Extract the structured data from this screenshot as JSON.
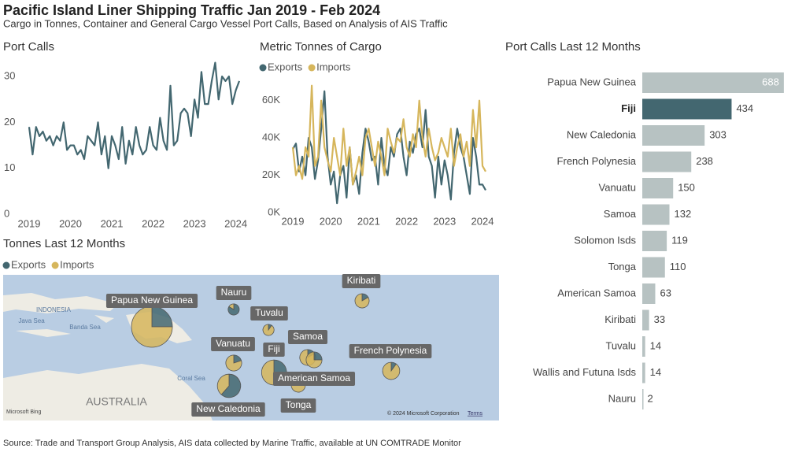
{
  "title": "Pacific Island Liner Shipping Traffic Jan 2019 - Feb 2024",
  "subtitle": "Cargo in Tonnes, Container and General Cargo Vessel Port Calls, Based on Analysis of AIS Traffic",
  "source": "Source: Trade and Transport Group Analysis, AIS data collected by Marine Traffic, available at UN COMTRADE Monitor",
  "chart_data": [
    {
      "type": "line",
      "title": "Port Calls",
      "x": [
        "2019-01",
        "2019-02",
        "2019-03",
        "2019-04",
        "2019-05",
        "2019-06",
        "2019-07",
        "2019-08",
        "2019-09",
        "2019-10",
        "2019-11",
        "2019-12",
        "2020-01",
        "2020-02",
        "2020-03",
        "2020-04",
        "2020-05",
        "2020-06",
        "2020-07",
        "2020-08",
        "2020-09",
        "2020-10",
        "2020-11",
        "2020-12",
        "2021-01",
        "2021-02",
        "2021-03",
        "2021-04",
        "2021-05",
        "2021-06",
        "2021-07",
        "2021-08",
        "2021-09",
        "2021-10",
        "2021-11",
        "2021-12",
        "2022-01",
        "2022-02",
        "2022-03",
        "2022-04",
        "2022-05",
        "2022-06",
        "2022-07",
        "2022-08",
        "2022-09",
        "2022-10",
        "2022-11",
        "2022-12",
        "2023-01",
        "2023-02",
        "2023-03",
        "2023-04",
        "2023-05",
        "2023-06",
        "2023-07",
        "2023-08",
        "2023-09",
        "2023-10",
        "2023-11",
        "2023-12",
        "2024-01",
        "2024-02"
      ],
      "series": [
        {
          "name": "Port Calls",
          "color": "#436770",
          "values": [
            19,
            13,
            19,
            17,
            18,
            16,
            17,
            15,
            17,
            16,
            20,
            14,
            15,
            15,
            13,
            14,
            12,
            17,
            16,
            15,
            20,
            13,
            17,
            10,
            17,
            15,
            12,
            19,
            11,
            16,
            13,
            19,
            15,
            13,
            14,
            19,
            15,
            14,
            21,
            16,
            14,
            28,
            15,
            16,
            22,
            23,
            22,
            17,
            25,
            21,
            31,
            24,
            24,
            29,
            33,
            25,
            30,
            29,
            30,
            24,
            27,
            29
          ]
        }
      ],
      "ylim": [
        0,
        34
      ],
      "yticks": [
        0,
        10,
        20,
        30
      ],
      "xticks": [
        {
          "value": "2019-01",
          "label": "2019"
        },
        {
          "value": "2020-01",
          "label": "2020"
        },
        {
          "value": "2021-01",
          "label": "2021"
        },
        {
          "value": "2022-01",
          "label": "2022"
        },
        {
          "value": "2023-01",
          "label": "2023"
        },
        {
          "value": "2024-01",
          "label": "2024"
        }
      ]
    },
    {
      "type": "line",
      "title": "Metric Tonnes of Cargo",
      "legend": true,
      "x": [
        "2019-01",
        "2019-02",
        "2019-03",
        "2019-04",
        "2019-05",
        "2019-06",
        "2019-07",
        "2019-08",
        "2019-09",
        "2019-10",
        "2019-11",
        "2019-12",
        "2020-01",
        "2020-02",
        "2020-03",
        "2020-04",
        "2020-05",
        "2020-06",
        "2020-07",
        "2020-08",
        "2020-09",
        "2020-10",
        "2020-11",
        "2020-12",
        "2021-01",
        "2021-02",
        "2021-03",
        "2021-04",
        "2021-05",
        "2021-06",
        "2021-07",
        "2021-08",
        "2021-09",
        "2021-10",
        "2021-11",
        "2021-12",
        "2022-01",
        "2022-02",
        "2022-03",
        "2022-04",
        "2022-05",
        "2022-06",
        "2022-07",
        "2022-08",
        "2022-09",
        "2022-10",
        "2022-11",
        "2022-12",
        "2023-01",
        "2023-02",
        "2023-03",
        "2023-04",
        "2023-05",
        "2023-06",
        "2023-07",
        "2023-08",
        "2023-09",
        "2023-10",
        "2023-11",
        "2023-12",
        "2024-01",
        "2024-02"
      ],
      "series": [
        {
          "name": "Exports",
          "color": "#436770",
          "values": [
            34000,
            37000,
            22000,
            30000,
            20000,
            40000,
            35000,
            18000,
            28000,
            45000,
            65000,
            30000,
            15000,
            22000,
            5000,
            20000,
            25000,
            8000,
            35000,
            15000,
            20000,
            10000,
            32000,
            45000,
            38000,
            28000,
            30000,
            15000,
            40000,
            25000,
            20000,
            35000,
            30000,
            42000,
            45000,
            30000,
            20000,
            38000,
            32000,
            42000,
            45000,
            35000,
            55000,
            30000,
            25000,
            8000,
            30000,
            15000,
            28000,
            20000,
            7000,
            32000,
            45000,
            35000,
            30000,
            20000,
            10000,
            40000,
            30000,
            15000,
            15000,
            12000
          ]
        },
        {
          "name": "Imports",
          "color": "#d6b65c",
          "values": [
            35000,
            20000,
            25000,
            18000,
            35000,
            30000,
            68000,
            25000,
            30000,
            60000,
            35000,
            28000,
            22000,
            40000,
            30000,
            20000,
            45000,
            25000,
            35000,
            15000,
            22000,
            30000,
            20000,
            40000,
            45000,
            35000,
            25000,
            38000,
            30000,
            20000,
            45000,
            38000,
            32000,
            40000,
            38000,
            50000,
            35000,
            30000,
            42000,
            35000,
            60000,
            40000,
            30000,
            45000,
            35000,
            28000,
            32000,
            40000,
            35000,
            30000,
            45000,
            25000,
            35000,
            42000,
            30000,
            38000,
            25000,
            55000,
            35000,
            60000,
            25000,
            22000
          ]
        }
      ],
      "ylim": [
        0,
        70000
      ],
      "yticks": [
        {
          "value": 0,
          "label": "0K"
        },
        {
          "value": 20000,
          "label": "20K"
        },
        {
          "value": 40000,
          "label": "40K"
        },
        {
          "value": 60000,
          "label": "60K"
        }
      ],
      "xticks": [
        {
          "value": "2019-01",
          "label": "2019"
        },
        {
          "value": "2020-01",
          "label": "2020"
        },
        {
          "value": "2021-01",
          "label": "2021"
        },
        {
          "value": "2022-01",
          "label": "2022"
        },
        {
          "value": "2023-01",
          "label": "2023"
        },
        {
          "value": "2024-01",
          "label": "2024"
        }
      ]
    },
    {
      "type": "bar",
      "orientation": "horizontal",
      "title": "Port Calls Last 12 Months",
      "categories": [
        "Papua New Guinea",
        "Fiji",
        "New Caledonia",
        "French Polynesia",
        "Vanuatu",
        "Samoa",
        "Solomon Isds",
        "Tonga",
        "American Samoa",
        "Kiribati",
        "Tuvalu",
        "Wallis and Futuna Isds",
        "Nauru"
      ],
      "values": [
        688,
        434,
        303,
        238,
        150,
        132,
        119,
        110,
        63,
        33,
        14,
        14,
        2
      ],
      "color": "#b7c2c2",
      "colors": [
        "#b7c2c2",
        "#436770",
        "#b7c2c2",
        "#b7c2c2",
        "#b7c2c2",
        "#b7c2c2",
        "#b7c2c2",
        "#b7c2c2",
        "#b7c2c2",
        "#b7c2c2",
        "#b7c2c2",
        "#b7c2c2",
        "#b7c2c2"
      ],
      "xlim": [
        0,
        700
      ]
    },
    {
      "type": "pie-map",
      "title": "Tonnes Last 12 Months",
      "legend": true,
      "categories": [
        "Papua New Guinea",
        "Nauru",
        "Tuvalu",
        "Kiribati",
        "Vanuatu",
        "Fiji",
        "Samoa",
        "American Samoa",
        "French Polynesia",
        "New Caledonia",
        "Tonga"
      ],
      "series": [
        {
          "name": "Exports",
          "color": "#436770",
          "values": [
            100000,
            25000,
            3000,
            8000,
            12000,
            70000,
            10000,
            15000,
            7000,
            80000,
            5000
          ]
        },
        {
          "name": "Imports",
          "color": "#d6b65c",
          "values": [
            300000,
            5000,
            27000,
            40000,
            48000,
            80000,
            50000,
            45000,
            63000,
            50000,
            43000
          ]
        }
      ],
      "place_labels": [
        "INDONESIA",
        "Java Sea",
        "Banda Sea",
        "Coral Sea",
        "AUSTRALIA"
      ],
      "logo": "Microsoft Bing",
      "attribution": "© 2024 Microsoft Corporation",
      "terms": "Terms"
    }
  ]
}
